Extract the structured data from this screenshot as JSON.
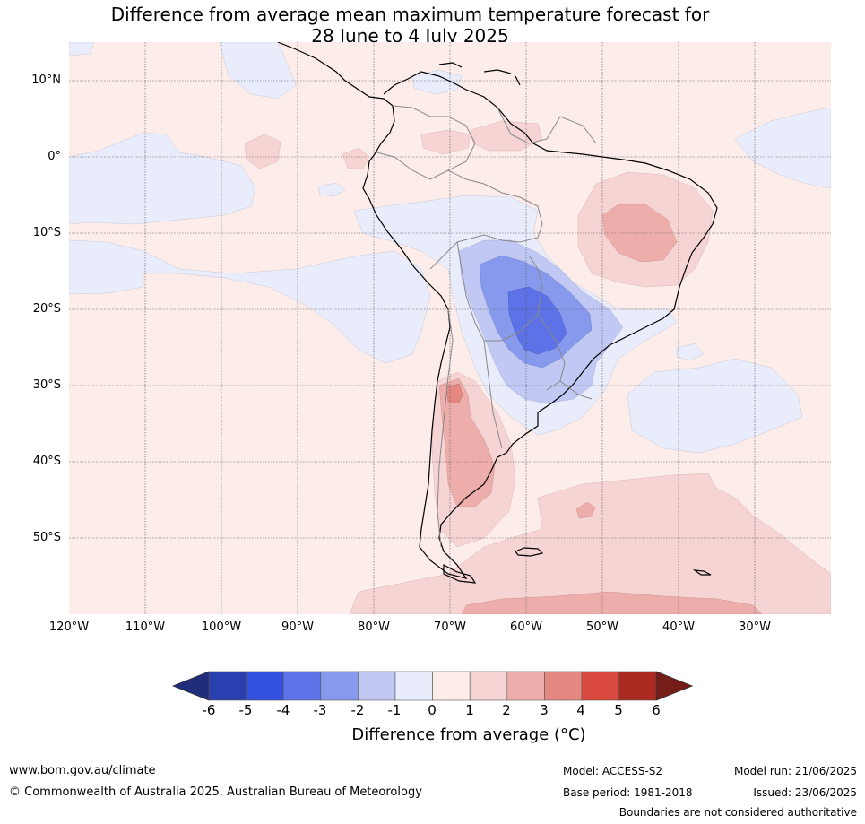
{
  "header": {
    "title_line1": "Difference from average mean maximum temperature forecast for",
    "title_line2": "28 June to 4 July 2025"
  },
  "map": {
    "lat_labels": [
      "10°N",
      "0°",
      "10°S",
      "20°S",
      "30°S",
      "40°S",
      "50°S"
    ],
    "lon_labels": [
      "120°W",
      "110°W",
      "100°W",
      "90°W",
      "80°W",
      "70°W",
      "60°W",
      "50°W",
      "40°W",
      "30°W"
    ],
    "extent": {
      "lon_min": -120,
      "lon_max": -20,
      "lat_min": -60,
      "lat_max": 15
    }
  },
  "colorbar": {
    "ticks": [
      "-6",
      "-5",
      "-4",
      "-3",
      "-2",
      "-1",
      "0",
      "1",
      "2",
      "3",
      "4",
      "5",
      "6"
    ],
    "colors": [
      "#1f2d7a",
      "#2b40b0",
      "#3350e0",
      "#5c72e6",
      "#8699ec",
      "#c0c8f3",
      "#e9ecfb",
      "#fcecea",
      "#f6d4d3",
      "#edaeab",
      "#e68882",
      "#da4a3e",
      "#ab2a22",
      "#751d18"
    ],
    "label": "Difference from average (°C)"
  },
  "footer": {
    "website": "www.bom.gov.au/climate",
    "copyright": "© Commonwealth of Australia 2025, Australian Bureau of Meteorology",
    "model": "Model: ACCESS-S2",
    "base_period": "Base period: 1981-2018",
    "model_run": "Model run: 21/06/2025",
    "issued": "Issued: 23/06/2025",
    "disclaimer": "Boundaries are not considered authoritative"
  }
}
